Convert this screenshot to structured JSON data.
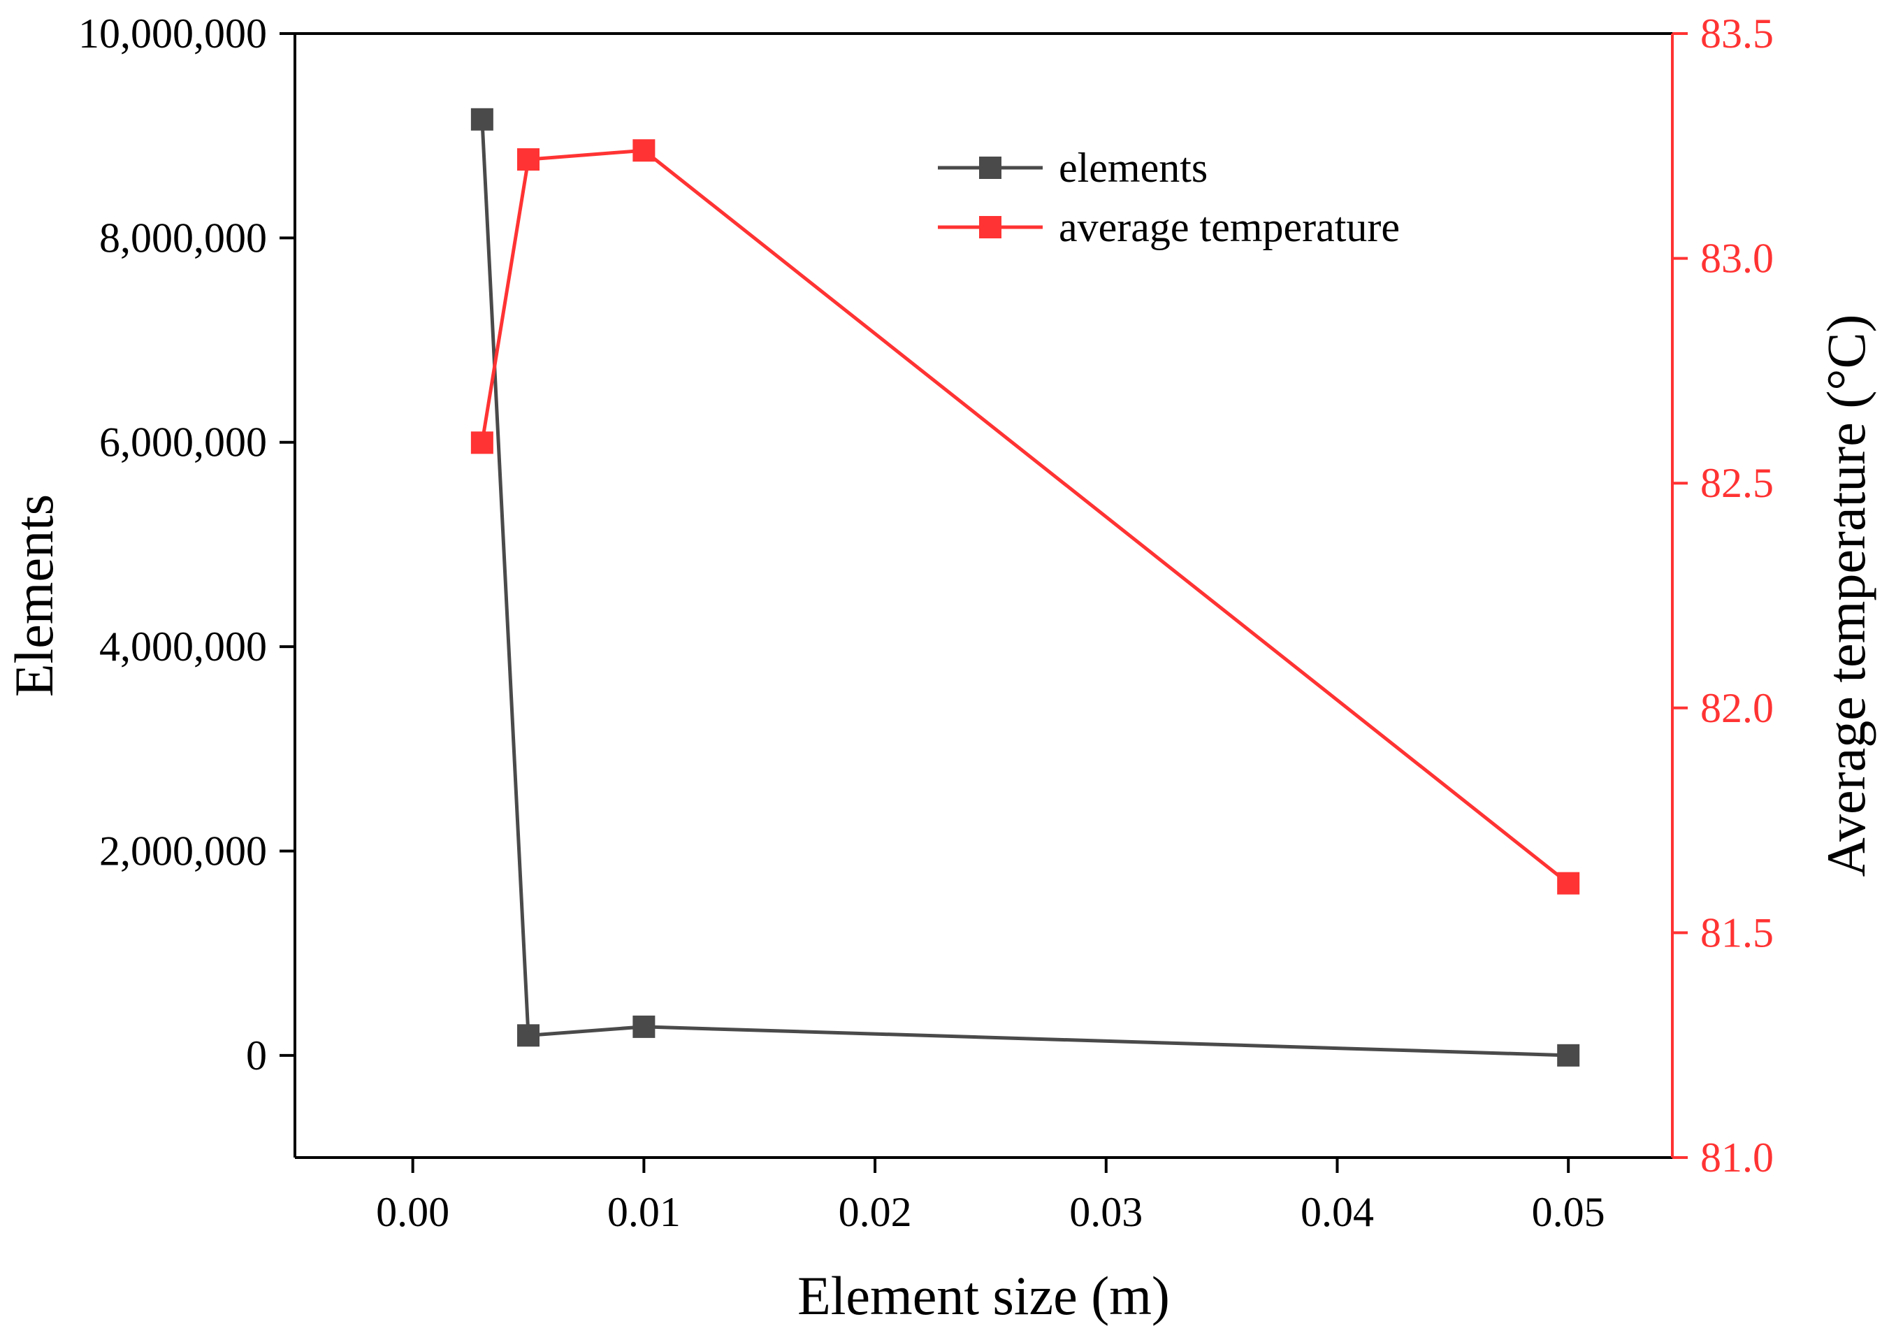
{
  "chart_data": {
    "type": "line",
    "title": "",
    "xlabel": "Element size (m)",
    "ylabel": "Elements",
    "y2label": "Average temperature (°C)",
    "xlim": [
      -0.0051,
      0.0545
    ],
    "ylim": [
      -1000000,
      10000000
    ],
    "y2lim": [
      81.0,
      83.5
    ],
    "x_ticks": [
      0.0,
      0.01,
      0.02,
      0.03,
      0.04,
      0.05
    ],
    "x_tick_labels": [
      "0.00",
      "0.01",
      "0.02",
      "0.03",
      "0.04",
      "0.05"
    ],
    "y_ticks": [
      0,
      2000000,
      4000000,
      6000000,
      8000000,
      10000000
    ],
    "y_tick_labels": [
      "0",
      "2,000,000",
      "4,000,000",
      "6,000,000",
      "8,000,000",
      "10,000,000"
    ],
    "y2_ticks": [
      81.0,
      81.5,
      82.0,
      82.5,
      83.0,
      83.5
    ],
    "y2_tick_labels": [
      "81.0",
      "81.5",
      "82.0",
      "82.5",
      "83.0",
      "83.5"
    ],
    "grid": false,
    "legend_position": "top-right",
    "series": [
      {
        "name": "elements",
        "axis": "left",
        "color": "#4a4a4a",
        "x": [
          0.003,
          0.005,
          0.01,
          0.05
        ],
        "values": [
          9160000,
          195000,
          280000,
          0
        ]
      },
      {
        "name": "average temperature",
        "axis": "right",
        "color": "#ff3333",
        "x": [
          0.003,
          0.005,
          0.01,
          0.05
        ],
        "values": [
          82.59,
          83.22,
          83.24,
          81.61
        ]
      }
    ]
  }
}
